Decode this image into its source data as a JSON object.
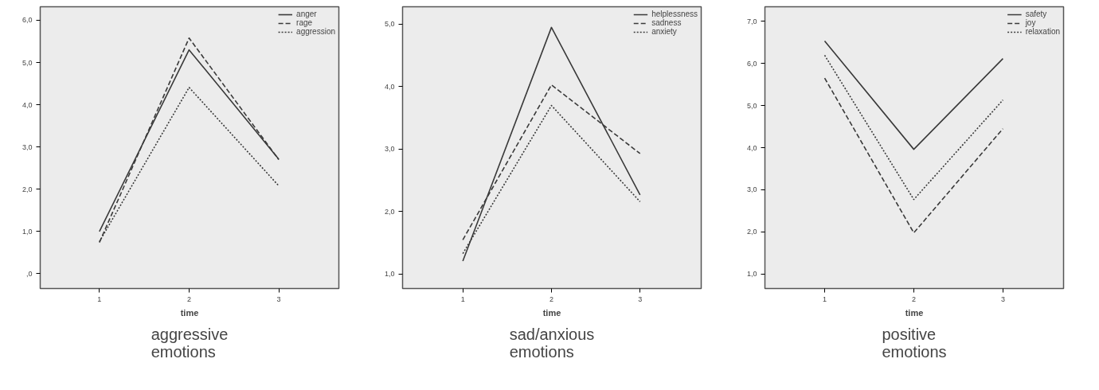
{
  "chart_data": [
    {
      "type": "line",
      "title": "aggressive\nemotions",
      "xlabel": "time",
      "x": [
        1,
        2,
        3
      ],
      "xlim": [
        0.34,
        3.67
      ],
      "xticks": [
        1,
        2,
        3
      ],
      "ylim": [
        -0.35,
        6.32
      ],
      "yticks": [
        {
          "value": 0,
          "label": ",0"
        },
        {
          "value": 1,
          "label": "1,0"
        },
        {
          "value": 2,
          "label": "2,0"
        },
        {
          "value": 3,
          "label": "3,0"
        },
        {
          "value": 4,
          "label": "4,0"
        },
        {
          "value": 5,
          "label": "5,0"
        },
        {
          "value": 6,
          "label": "6,0"
        }
      ],
      "legend": "top right",
      "grid": false,
      "series": [
        {
          "name": "anger",
          "color": "#3a3a3a",
          "line_style": "solid",
          "values": [
            1.0,
            5.3,
            2.71
          ]
        },
        {
          "name": "rage",
          "color": "#3a3a3a",
          "line_style": "dashed",
          "values": [
            0.74,
            5.58,
            2.7
          ]
        },
        {
          "name": "aggression",
          "color": "#3a3a3a",
          "line_style": "dotted",
          "values": [
            0.76,
            4.41,
            2.08
          ]
        }
      ]
    },
    {
      "type": "line",
      "title": "sad/anxious\nemotions",
      "xlabel": "time",
      "x": [
        1,
        2,
        3
      ],
      "xlim": [
        0.32,
        3.69
      ],
      "xticks": [
        1,
        2,
        3
      ],
      "ylim": [
        0.77,
        5.28
      ],
      "yticks": [
        {
          "value": 1,
          "label": "1,0"
        },
        {
          "value": 2,
          "label": "2,0"
        },
        {
          "value": 3,
          "label": "3,0"
        },
        {
          "value": 4,
          "label": "4,0"
        },
        {
          "value": 5,
          "label": "5,0"
        }
      ],
      "legend": "top right",
      "grid": false,
      "series": [
        {
          "name": "helplessness",
          "color": "#3a3a3a",
          "line_style": "solid",
          "values": [
            1.21,
            4.95,
            2.27
          ]
        },
        {
          "name": "sadness",
          "color": "#3a3a3a",
          "line_style": "dashed",
          "values": [
            1.55,
            4.03,
            2.93
          ]
        },
        {
          "name": "anxiety",
          "color": "#3a3a3a",
          "line_style": "dotted",
          "values": [
            1.33,
            3.7,
            2.16
          ]
        }
      ]
    },
    {
      "type": "line",
      "title": "positive\nemotions",
      "xlabel": "time",
      "x": [
        1,
        2,
        3
      ],
      "xlim": [
        0.33,
        3.68
      ],
      "xticks": [
        1,
        2,
        3
      ],
      "ylim": [
        0.66,
        7.34
      ],
      "yticks": [
        {
          "value": 1,
          "label": "1,0"
        },
        {
          "value": 2,
          "label": "2,0"
        },
        {
          "value": 3,
          "label": "3,0"
        },
        {
          "value": 4,
          "label": "4,0"
        },
        {
          "value": 5,
          "label": "5,0"
        },
        {
          "value": 6,
          "label": "6,0"
        },
        {
          "value": 7,
          "label": "7,0"
        }
      ],
      "legend": "top right",
      "grid": false,
      "series": [
        {
          "name": "safety",
          "color": "#3a3a3a",
          "line_style": "solid",
          "values": [
            6.53,
            3.96,
            6.11
          ]
        },
        {
          "name": "joy",
          "color": "#3a3a3a",
          "line_style": "dashed",
          "values": [
            5.65,
            1.98,
            4.45
          ]
        },
        {
          "name": "relaxation",
          "color": "#3a3a3a",
          "line_style": "dotted",
          "values": [
            6.19,
            2.77,
            5.13
          ]
        }
      ]
    }
  ]
}
